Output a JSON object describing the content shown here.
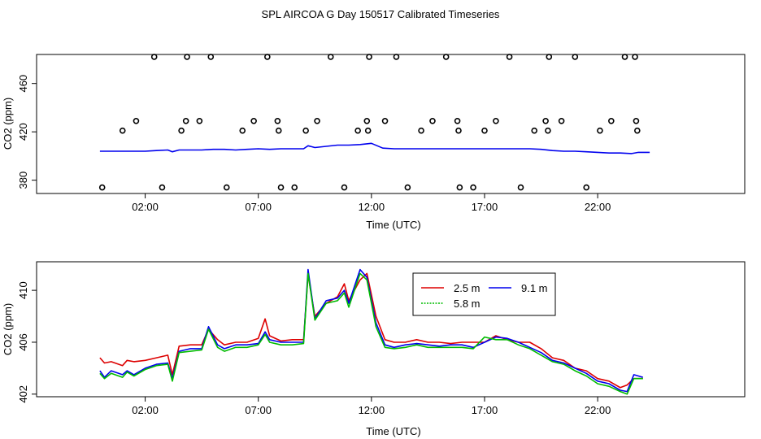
{
  "figure_title": "SPL AIRCOA G  Day 150517  Calibrated Timeseries",
  "chart_data": [
    {
      "type": "scatter+line",
      "title": "SPL AIRCOA G  Day 150517  Calibrated Timeseries",
      "xlabel": "Time (UTC)",
      "ylabel": "CO2 (ppm)",
      "x_unit": "hours UTC",
      "xlim": [
        -2.8,
        28.5
      ],
      "ylim": [
        369,
        484
      ],
      "x_ticks": [
        2,
        7,
        12,
        17,
        22
      ],
      "x_tick_labels": [
        "02:00",
        "07:00",
        "12:00",
        "17:00",
        "22:00"
      ],
      "y_ticks": [
        380,
        420,
        460
      ],
      "y_tick_labels": [
        "380",
        "420",
        "460"
      ],
      "grid": false,
      "legend": null,
      "series": [
        {
          "name": "CO2",
          "color": "#0000ee",
          "x": [
            0,
            0.5,
            1,
            1.5,
            2,
            2.5,
            3,
            3.2,
            3.5,
            4,
            4.5,
            5,
            5.5,
            6,
            6.5,
            7,
            7.5,
            8,
            8.5,
            9,
            9.2,
            9.5,
            10,
            10.5,
            11,
            11.5,
            12,
            12.5,
            13,
            13.5,
            14,
            14.5,
            15,
            15.5,
            16,
            16.5,
            17,
            17.5,
            18,
            18.5,
            19,
            19.5,
            20,
            20.5,
            21,
            21.5,
            22,
            22.5,
            23,
            23.5,
            23.8,
            24.3
          ],
          "values": [
            404,
            404,
            404,
            404,
            404,
            404.5,
            405,
            403.5,
            405,
            405,
            405,
            405.5,
            405.5,
            405,
            405.5,
            406,
            405.5,
            406,
            406,
            406,
            408.5,
            407,
            408,
            409,
            409,
            409.5,
            410.5,
            406.5,
            406,
            406,
            406,
            406,
            406,
            406,
            406,
            406,
            406,
            406,
            406,
            406,
            406,
            405.5,
            404.5,
            404,
            404,
            403.5,
            403,
            402.5,
            402.5,
            402,
            403,
            403
          ]
        },
        {
          "name": "markers",
          "marker": "open-circle",
          "x": [
            0.1,
            1.0,
            1.6,
            2.4,
            2.75,
            3.6,
            3.8,
            3.85,
            4.4,
            4.9,
            5.6,
            6.3,
            6.8,
            7.4,
            7.85,
            7.9,
            8.0,
            8.6,
            9.1,
            9.6,
            10.2,
            10.8,
            11.4,
            11.8,
            11.85,
            11.9,
            12.6,
            13.1,
            13.6,
            14.2,
            14.7,
            15.3,
            15.8,
            15.85,
            15.9,
            16.5,
            17.0,
            17.5,
            18.1,
            18.6,
            19.2,
            19.7,
            19.8,
            19.85,
            20.4,
            21.0,
            21.5,
            22.1,
            22.6,
            23.2,
            23.65,
            23.7,
            23.75
          ],
          "values": [
            374,
            421,
            429,
            482,
            374,
            421,
            429,
            482,
            429,
            482,
            374,
            421,
            429,
            482,
            429,
            421,
            374,
            374,
            421,
            429,
            482,
            374,
            421,
            429,
            421,
            482,
            429,
            482,
            374,
            421,
            429,
            482,
            429,
            421,
            374,
            374,
            421,
            429,
            482,
            374,
            421,
            429,
            421,
            482,
            429,
            482,
            374,
            421,
            429,
            482,
            482,
            429,
            421
          ]
        }
      ]
    },
    {
      "type": "line",
      "xlabel": "Time (UTC)",
      "ylabel": "CO2 (ppm)",
      "x_unit": "hours UTC",
      "xlim": [
        -2.8,
        28.5
      ],
      "ylim": [
        401.8,
        412.2
      ],
      "x_ticks": [
        2,
        7,
        12,
        17,
        22
      ],
      "x_tick_labels": [
        "02:00",
        "07:00",
        "12:00",
        "17:00",
        "22:00"
      ],
      "y_ticks": [
        402,
        406,
        410
      ],
      "y_tick_labels": [
        "402",
        "406",
        "410"
      ],
      "grid": false,
      "legend": {
        "position": "top-center",
        "entries": [
          {
            "label": "2.5 m",
            "color": "#dd0000"
          },
          {
            "label": "9.1 m",
            "color": "#0000ee"
          },
          {
            "label": "5.8 m",
            "color": "#00bb00"
          }
        ]
      },
      "series": [
        {
          "name": "2.5 m",
          "color": "#dd0000",
          "x": [
            0,
            0.2,
            0.5,
            1,
            1.2,
            1.5,
            2,
            2.5,
            3,
            3.2,
            3.5,
            4,
            4.5,
            4.8,
            5.2,
            5.5,
            6,
            6.5,
            7,
            7.3,
            7.5,
            8,
            8.5,
            9,
            9.2,
            9.5,
            10,
            10.5,
            10.8,
            11,
            11.5,
            11.8,
            12.2,
            12.6,
            13,
            13.5,
            14,
            14.5,
            15,
            15.5,
            16,
            16.5,
            17,
            17.5,
            18,
            18.5,
            19,
            19.5,
            20,
            20.5,
            21,
            21.5,
            22,
            22.5,
            23,
            23.3,
            23.6,
            24
          ],
          "values": [
            404.8,
            404.4,
            404.5,
            404.2,
            404.6,
            404.5,
            404.6,
            404.8,
            405.0,
            403.5,
            405.7,
            405.8,
            405.8,
            407.0,
            406.2,
            405.8,
            406.0,
            406.0,
            406.3,
            407.8,
            406.5,
            406.1,
            406.2,
            406.2,
            411.2,
            408.0,
            409.0,
            409.5,
            410.5,
            409.2,
            410.8,
            411.3,
            408.0,
            406.2,
            406.0,
            406.0,
            406.2,
            406.0,
            406.0,
            405.9,
            406.0,
            406.0,
            406.0,
            406.5,
            406.2,
            406.0,
            406.0,
            405.5,
            404.8,
            404.6,
            404.0,
            403.8,
            403.2,
            403.0,
            402.5,
            402.7,
            403.2,
            403.2
          ]
        },
        {
          "name": "9.1 m",
          "color": "#0000ee",
          "x": [
            0,
            0.2,
            0.5,
            1,
            1.2,
            1.5,
            2,
            2.5,
            3,
            3.2,
            3.5,
            4,
            4.5,
            4.8,
            5.2,
            5.5,
            6,
            6.5,
            7,
            7.3,
            7.5,
            8,
            8.5,
            9,
            9.2,
            9.5,
            10,
            10.5,
            10.8,
            11,
            11.5,
            11.8,
            12.2,
            12.6,
            13,
            13.5,
            14,
            14.5,
            15,
            15.5,
            16,
            16.5,
            17,
            17.5,
            18,
            18.5,
            19,
            19.5,
            20,
            20.5,
            21,
            21.5,
            22,
            22.5,
            23,
            23.3,
            23.6,
            24
          ],
          "values": [
            403.8,
            403.3,
            403.8,
            403.5,
            403.8,
            403.5,
            404.0,
            404.3,
            404.4,
            403.2,
            405.3,
            405.5,
            405.5,
            407.2,
            405.8,
            405.5,
            405.8,
            405.8,
            405.9,
            406.8,
            406.2,
            406.0,
            406.0,
            406.0,
            411.6,
            407.8,
            409.2,
            409.4,
            410.0,
            409.0,
            411.6,
            411.0,
            407.5,
            405.8,
            405.6,
            405.8,
            405.9,
            405.8,
            405.7,
            405.8,
            405.8,
            405.6,
            406.0,
            406.4,
            406.3,
            406.0,
            405.6,
            405.2,
            404.6,
            404.4,
            404.0,
            403.6,
            403.0,
            402.8,
            402.3,
            402.2,
            403.5,
            403.3
          ]
        },
        {
          "name": "5.8 m",
          "color": "#00bb00",
          "x": [
            0,
            0.2,
            0.5,
            1,
            1.2,
            1.5,
            2,
            2.5,
            3,
            3.2,
            3.5,
            4,
            4.5,
            4.8,
            5.2,
            5.5,
            6,
            6.5,
            7,
            7.3,
            7.5,
            8,
            8.5,
            9,
            9.2,
            9.5,
            10,
            10.5,
            10.8,
            11,
            11.5,
            11.8,
            12.2,
            12.6,
            13,
            13.5,
            14,
            14.5,
            15,
            15.5,
            16,
            16.5,
            17,
            17.5,
            18,
            18.5,
            19,
            19.5,
            20,
            20.5,
            21,
            21.5,
            22,
            22.5,
            23,
            23.3,
            23.6,
            24
          ],
          "values": [
            403.6,
            403.2,
            403.6,
            403.3,
            403.7,
            403.4,
            403.9,
            404.2,
            404.3,
            403.0,
            405.2,
            405.3,
            405.4,
            407.0,
            405.6,
            405.3,
            405.6,
            405.6,
            405.8,
            406.6,
            406.0,
            405.8,
            405.8,
            405.9,
            411.3,
            407.7,
            409.0,
            409.2,
            409.8,
            408.7,
            411.3,
            410.8,
            407.2,
            405.6,
            405.5,
            405.6,
            405.8,
            405.6,
            405.6,
            405.6,
            405.6,
            405.5,
            406.4,
            406.2,
            406.2,
            405.8,
            405.5,
            405.0,
            404.5,
            404.3,
            403.8,
            403.4,
            402.8,
            402.6,
            402.2,
            402.0,
            403.2,
            403.2
          ]
        }
      ]
    }
  ]
}
